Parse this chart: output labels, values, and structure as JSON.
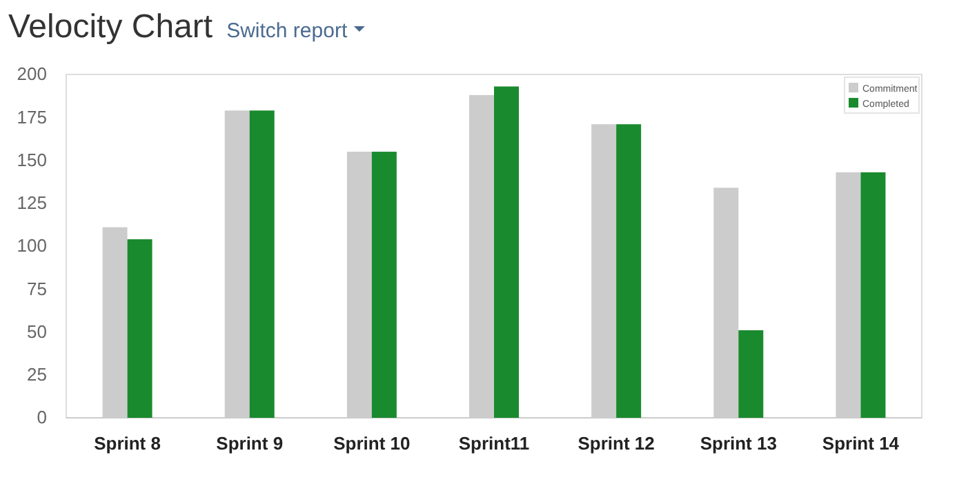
{
  "chart_data": {
    "type": "bar",
    "title": "Velocity Chart",
    "subtitle": "Switch report",
    "categories": [
      "Sprint 8",
      "Sprint 9",
      "Sprint 10",
      "Sprint11",
      "Sprint 12",
      "Sprint 13",
      "Sprint 14"
    ],
    "series": [
      {
        "name": "Commitment",
        "color": "#cccccc",
        "values": [
          111,
          179,
          155,
          188,
          171,
          134,
          143
        ]
      },
      {
        "name": "Completed",
        "color": "#1a8a2e",
        "values": [
          104,
          179,
          155,
          193,
          171,
          51,
          143
        ]
      }
    ],
    "ylim": [
      0,
      200
    ],
    "yticks": [
      0,
      25,
      50,
      75,
      100,
      125,
      150,
      175,
      200
    ],
    "grid": false,
    "legend": "top right"
  }
}
